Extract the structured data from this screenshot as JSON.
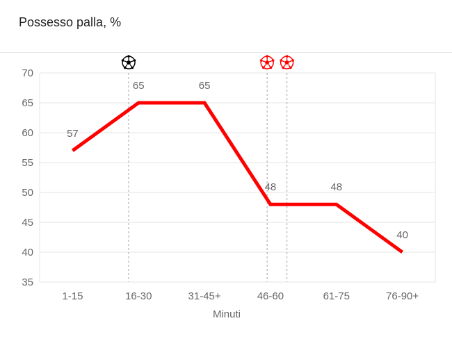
{
  "title": "Possesso palla, %",
  "chart_data": {
    "type": "line",
    "categories": [
      "1-15",
      "16-30",
      "31-45+",
      "46-60",
      "61-75",
      "76-90+"
    ],
    "values": [
      57,
      65,
      65,
      48,
      48,
      40
    ],
    "xlabel": "Minuti",
    "ylabel": "",
    "ylim": [
      35,
      70
    ],
    "yticks": [
      35,
      40,
      45,
      50,
      55,
      60,
      65,
      70
    ],
    "grid": true,
    "line_color": "#ff0000",
    "events": [
      {
        "icon": "soccer-ball-black-icon",
        "color": "#000000",
        "position": 1.35
      },
      {
        "icon": "soccer-ball-red-icon",
        "color": "#ff0000",
        "position": 3.45
      },
      {
        "icon": "soccer-ball-red-icon",
        "color": "#ff0000",
        "position": 3.75
      }
    ]
  }
}
